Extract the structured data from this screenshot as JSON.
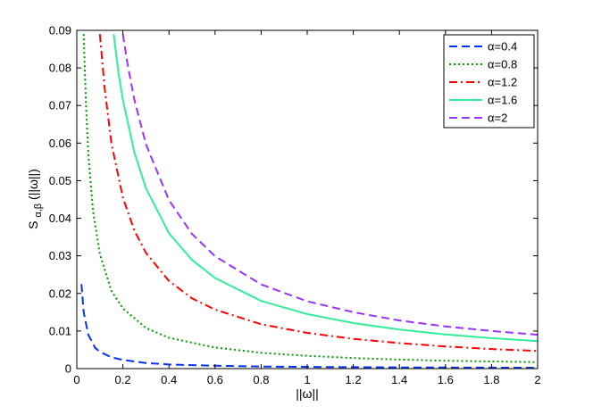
{
  "chart_data": {
    "type": "line",
    "xlabel": "||ω||",
    "ylabel_main": "S",
    "ylabel_sub": "α,β",
    "ylabel_rest": "(||ω||)",
    "xlim": [
      0,
      2
    ],
    "ylim": [
      0,
      0.09
    ],
    "xticks": [
      "0",
      "0.2",
      "0.4",
      "0.6",
      "0.8",
      "1",
      "1.2",
      "1.4",
      "1.6",
      "1.8",
      "2"
    ],
    "yticks": [
      "0",
      "0.01",
      "0.02",
      "0.03",
      "0.04",
      "0.05",
      "0.06",
      "0.07",
      "0.08",
      "0.09"
    ],
    "grid": false,
    "legend_position": "top-right",
    "series": [
      {
        "name": "α=0.4",
        "color": "#0033ff",
        "style": "dashed",
        "x": [
          0.02,
          0.03,
          0.05,
          0.08,
          0.1,
          0.15,
          0.2,
          0.3,
          0.4,
          0.6,
          0.8,
          1.0,
          1.2,
          1.4,
          1.6,
          1.8,
          2.0
        ],
        "y": [
          0.0225,
          0.015,
          0.009,
          0.0055,
          0.0045,
          0.003,
          0.0023,
          0.0015,
          0.0011,
          0.00075,
          0.00055,
          0.00045,
          0.00037,
          0.00032,
          0.00028,
          0.00025,
          0.00022
        ]
      },
      {
        "name": "α=0.8",
        "color": "#009900",
        "style": "dotted",
        "x": [
          0.03,
          0.04,
          0.05,
          0.07,
          0.1,
          0.15,
          0.2,
          0.3,
          0.4,
          0.6,
          0.8,
          1.0,
          1.2,
          1.4,
          1.6,
          1.8,
          2.0
        ],
        "y": [
          0.089,
          0.07,
          0.057,
          0.042,
          0.0305,
          0.0207,
          0.016,
          0.0108,
          0.0082,
          0.0056,
          0.0042,
          0.0034,
          0.0028,
          0.0024,
          0.0021,
          0.0019,
          0.0017
        ]
      },
      {
        "name": "α=1.2",
        "color": "#ff0000",
        "style": "dashdot",
        "x": [
          0.1,
          0.12,
          0.15,
          0.2,
          0.25,
          0.3,
          0.4,
          0.5,
          0.6,
          0.8,
          1.0,
          1.2,
          1.4,
          1.6,
          1.8,
          2.0
        ],
        "y": [
          0.089,
          0.075,
          0.06,
          0.0455,
          0.0367,
          0.0308,
          0.0233,
          0.0187,
          0.0157,
          0.0118,
          0.0095,
          0.0079,
          0.0068,
          0.0059,
          0.0052,
          0.0047
        ]
      },
      {
        "name": "α=1.6",
        "color": "#33ee99",
        "style": "solid",
        "x": [
          0.16,
          0.18,
          0.2,
          0.25,
          0.3,
          0.4,
          0.5,
          0.6,
          0.8,
          1.0,
          1.2,
          1.4,
          1.6,
          1.8,
          2.0
        ],
        "y": [
          0.089,
          0.079,
          0.0715,
          0.0575,
          0.048,
          0.036,
          0.0289,
          0.0241,
          0.018,
          0.0145,
          0.0121,
          0.0104,
          0.0091,
          0.0081,
          0.0073
        ]
      },
      {
        "name": "α=2",
        "color": "#9933ff",
        "style": "dashed",
        "x": [
          0.2,
          0.22,
          0.25,
          0.3,
          0.4,
          0.5,
          0.6,
          0.8,
          1.0,
          1.2,
          1.4,
          1.6,
          1.8,
          2.0
        ],
        "y": [
          0.089,
          0.081,
          0.0715,
          0.0597,
          0.0448,
          0.0358,
          0.0299,
          0.0224,
          0.0179,
          0.015,
          0.0128,
          0.0112,
          0.01,
          0.009
        ]
      }
    ]
  }
}
